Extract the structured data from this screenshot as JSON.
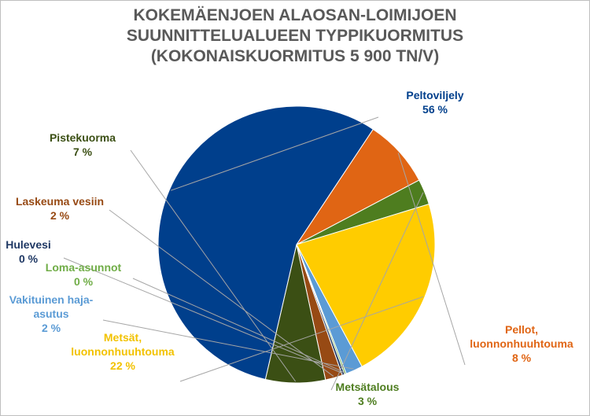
{
  "chart_data": {
    "type": "pie",
    "title_lines": [
      "KOKEMÄENJOEN ALAOSAN-LOIMIJOEN",
      "SUUNNITTELUALUEEN TYPPIKUORMITUS",
      "(KOKONAISKUORMITUS 5 900 TN/V)"
    ],
    "slices": [
      {
        "name": "Peltoviljely",
        "value": 56,
        "value_label": "56 %",
        "color": "#003f8c"
      },
      {
        "name": "Pellot, luonnonhuuhtouma",
        "value": 8,
        "value_label": "8 %",
        "color": "#e06514"
      },
      {
        "name": "Metsätalous",
        "value": 3,
        "value_label": "3 %",
        "color": "#4e7d1f"
      },
      {
        "name": "Metsät, luonnonhuuhtouma",
        "value": 22,
        "value_label": "22 %",
        "color": "#ffcc00"
      },
      {
        "name": "Vakituinen haja-asutus",
        "value": 2,
        "value_label": "2 %",
        "color": "#5b9bd5"
      },
      {
        "name": "Loma-asunnot",
        "value": 0.2,
        "value_label": "0 %",
        "color": "#70ad47"
      },
      {
        "name": "Hulevesi",
        "value": 0.3,
        "value_label": "0 %",
        "color": "#1f3864"
      },
      {
        "name": "Laskeuma vesiin",
        "value": 2,
        "value_label": "2 %",
        "color": "#974a14"
      },
      {
        "name": "Pistekuorma",
        "value": 7,
        "value_label": "7 %",
        "color": "#3b4f14"
      }
    ]
  }
}
